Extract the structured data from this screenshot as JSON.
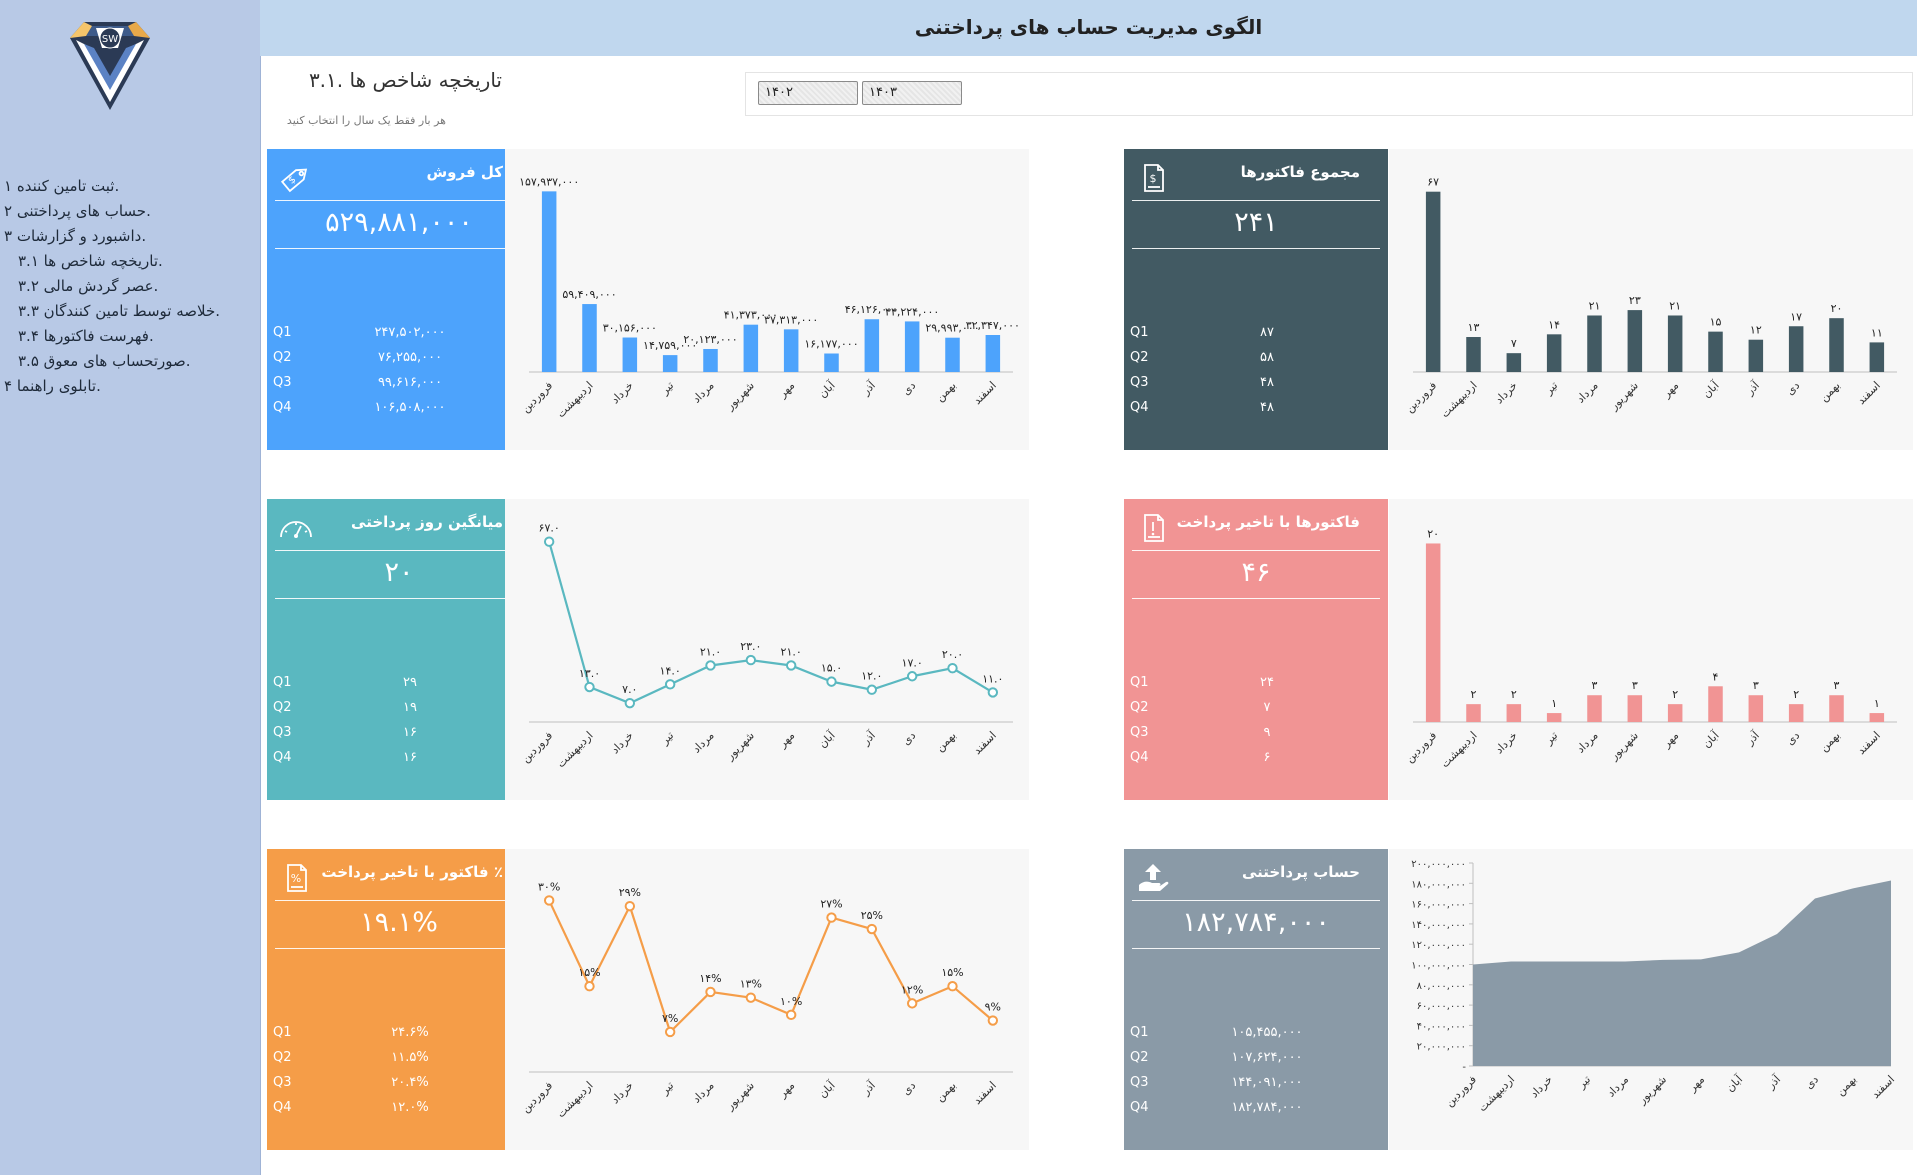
{
  "header": {
    "title": "الگوی مدیریت حساب های پرداختنی"
  },
  "logo": {
    "text": "SW"
  },
  "page": {
    "title": "تاریخچه شاخص ها .۳.۱",
    "hint": "هر بار فقط یک سال را انتخاب کنید"
  },
  "slicer": {
    "items": [
      "۱۴۰۲",
      "۱۴۰۳"
    ]
  },
  "sidebar": {
    "items": [
      {
        "label": "ثبت تامین کننده ۱."
      },
      {
        "label": "حساب های پرداختنی ۲."
      },
      {
        "label": "داشبورد و گزارشات ۳."
      },
      {
        "label": "تاریخچه شاخص ها ۳.۱."
      },
      {
        "label": "عصر گردش مالی ۳.۲."
      },
      {
        "label": "خلاصه توسط تامین کنندگان ۳.۳."
      },
      {
        "label": "فهرست فاکتورها ۳.۴."
      },
      {
        "label": "صورتحساب های معوق ۳.۵."
      },
      {
        "label": "تابلوی راهنما ۴."
      }
    ]
  },
  "kpis": {
    "sales": {
      "title": "کل فروش",
      "value": "۵۲۹,۸۸۱,۰۰۰",
      "color": "#4da3fc",
      "icon": "price-tag-icon",
      "quarters": [
        {
          "label": "Q1",
          "value": "۲۴۷,۵۰۲,۰۰۰"
        },
        {
          "label": "Q2",
          "value": "۷۶,۲۵۵,۰۰۰"
        },
        {
          "label": "Q3",
          "value": "۹۹,۶۱۶,۰۰۰"
        },
        {
          "label": "Q4",
          "value": "۱۰۶,۵۰۸,۰۰۰"
        }
      ]
    },
    "invoices": {
      "title": "مجموع فاکتورها",
      "value": "۲۴۱",
      "color": "#425a63",
      "icon": "invoice-icon",
      "quarters": [
        {
          "label": "Q1",
          "value": "۸۷"
        },
        {
          "label": "Q2",
          "value": "۵۸"
        },
        {
          "label": "Q3",
          "value": "۴۸"
        },
        {
          "label": "Q4",
          "value": "۴۸"
        }
      ]
    },
    "pay_days": {
      "title": "میانگین روز پرداختی",
      "value": "۲۰",
      "color": "#5ab8c0",
      "icon": "gauge-icon",
      "quarters": [
        {
          "label": "Q1",
          "value": "۲۹"
        },
        {
          "label": "Q2",
          "value": "۱۹"
        },
        {
          "label": "Q3",
          "value": "۱۶"
        },
        {
          "label": "Q4",
          "value": "۱۶"
        }
      ]
    },
    "late_invoices": {
      "title": "فاکتورها با تاخیر پرداخت",
      "value": "۴۶",
      "color": "#f19494",
      "icon": "alert-document-icon",
      "quarters": [
        {
          "label": "Q1",
          "value": "۲۴"
        },
        {
          "label": "Q2",
          "value": "۷"
        },
        {
          "label": "Q3",
          "value": "۹"
        },
        {
          "label": "Q4",
          "value": "۶"
        }
      ]
    },
    "late_pct": {
      "title": "فاکتور با تاخیر پرداخت ٪",
      "value": "۱۹.۱%",
      "color": "#f59d48",
      "icon": "percent-document-icon",
      "quarters": [
        {
          "label": "Q1",
          "value": "۲۴.۶%"
        },
        {
          "label": "Q2",
          "value": "۱۱.۵%"
        },
        {
          "label": "Q3",
          "value": "۲۰.۴%"
        },
        {
          "label": "Q4",
          "value": "۱۲.۰%"
        }
      ]
    },
    "payables": {
      "title": "حساب پرداختنی",
      "value": "۱۸۲,۷۸۴,۰۰۰",
      "color": "#8a9aa7",
      "icon": "hand-upload-icon",
      "quarters": [
        {
          "label": "Q1",
          "value": "۱۰۵,۴۵۵,۰۰۰"
        },
        {
          "label": "Q2",
          "value": "۱۰۷,۶۲۴,۰۰۰"
        },
        {
          "label": "Q3",
          "value": "۱۴۴,۰۹۱,۰۰۰"
        },
        {
          "label": "Q4",
          "value": "۱۸۲,۷۸۴,۰۰۰"
        }
      ]
    }
  },
  "chart_data": [
    {
      "id": "sales",
      "type": "bar",
      "color": "#4da3fc",
      "categories": [
        "فروردین",
        "اردیبهشت",
        "خرداد",
        "تیر",
        "مرداد",
        "شهریور",
        "مهر",
        "آبان",
        "آذر",
        "دی",
        "بهمن",
        "اسفند"
      ],
      "values": [
        157937000,
        59409000,
        30156000,
        14759000,
        20123000,
        41373000,
        37313000,
        16177000,
        46126000,
        44224000,
        29993000,
        32347000
      ],
      "labels": [
        "۱۵۷,۹۳۷,۰۰۰",
        "۵۹,۴۰۹,۰۰۰",
        "۳۰,۱۵۶,۰۰۰",
        "۱۴,۷۵۹,۰۰۰",
        "۲۰,۱۲۳,۰۰۰",
        "۴۱,۳۷۳,۰۰۰",
        "۳۷,۳۱۳,۰۰۰",
        "۱۶,۱۷۷,۰۰۰",
        "۴۶,۱۲۶,۰۰۰",
        "۴۴,۲۲۴,۰۰۰",
        "۲۹,۹۹۳,۰۰۰",
        "۳۲,۳۴۷,۰۰۰"
      ],
      "ylim": [
        0,
        160000000
      ]
    },
    {
      "id": "invoices",
      "type": "bar",
      "color": "#425a63",
      "categories": [
        "فروردین",
        "اردیبهشت",
        "خرداد",
        "تیر",
        "مرداد",
        "شهریور",
        "مهر",
        "آبان",
        "آذر",
        "دی",
        "بهمن",
        "اسفند"
      ],
      "values": [
        67,
        13,
        7,
        14,
        21,
        23,
        21,
        15,
        12,
        17,
        20,
        11
      ],
      "labels": [
        "۶۷",
        "۱۳",
        "۷",
        "۱۴",
        "۲۱",
        "۲۳",
        "۲۱",
        "۱۵",
        "۱۲",
        "۱۷",
        "۲۰",
        "۱۱"
      ],
      "ylim": [
        0,
        68
      ]
    },
    {
      "id": "pay_days",
      "type": "line",
      "color": "#5ab8c0",
      "categories": [
        "فروردین",
        "اردیبهشت",
        "خرداد",
        "تیر",
        "مرداد",
        "شهریور",
        "مهر",
        "آبان",
        "آذر",
        "دی",
        "بهمن",
        "اسفند"
      ],
      "values": [
        67,
        13,
        7,
        14,
        21,
        23,
        21,
        15,
        12,
        17,
        20,
        11
      ],
      "labels": [
        "۶۷.۰",
        "۱۳.۰",
        "۷.۰",
        "۱۴.۰",
        "۲۱.۰",
        "۲۳.۰",
        "۲۱.۰",
        "۱۵.۰",
        "۱۲.۰",
        "۱۷.۰",
        "۲۰.۰",
        "۱۱.۰"
      ],
      "ylim": [
        0,
        68
      ]
    },
    {
      "id": "late_invoices",
      "type": "bar",
      "color": "#f19494",
      "categories": [
        "فروردین",
        "اردیبهشت",
        "خرداد",
        "تیر",
        "مرداد",
        "شهریور",
        "مهر",
        "آبان",
        "آذر",
        "دی",
        "بهمن",
        "اسفند"
      ],
      "values": [
        20,
        2,
        2,
        1,
        3,
        3,
        2,
        4,
        3,
        2,
        3,
        1
      ],
      "labels": [
        "۲۰",
        "۲",
        "۲",
        "۱",
        "۳",
        "۳",
        "۲",
        "۴",
        "۳",
        "۲",
        "۳",
        "۱"
      ],
      "ylim": [
        0,
        20.5
      ]
    },
    {
      "id": "late_pct",
      "type": "line",
      "color": "#f59d48",
      "categories": [
        "فروردین",
        "اردیبهشت",
        "خرداد",
        "تیر",
        "مرداد",
        "شهریور",
        "مهر",
        "آبان",
        "آذر",
        "دی",
        "بهمن",
        "اسفند"
      ],
      "values": [
        30,
        15,
        29,
        7,
        14,
        13,
        10,
        27,
        25,
        12,
        15,
        9
      ],
      "labels": [
        "۳۰%",
        "۱۵%",
        "۲۹%",
        "۷%",
        "۱۴%",
        "۱۳%",
        "۱۰%",
        "۲۷%",
        "۲۵%",
        "۱۲%",
        "۱۵%",
        "۹%"
      ],
      "ylim": [
        0,
        32
      ]
    },
    {
      "id": "payables",
      "type": "area",
      "color": "#8a9aa7",
      "categories": [
        "فروردین",
        "اردیبهشت",
        "خرداد",
        "تیر",
        "مرداد",
        "شهریور",
        "مهر",
        "آبان",
        "آذر",
        "دی",
        "بهمن",
        "اسفند"
      ],
      "values": [
        100000000,
        103000000,
        103000000,
        103000000,
        103000000,
        104500000,
        105000000,
        112000000,
        130000000,
        165000000,
        175000000,
        182784000
      ],
      "ylim": [
        0,
        200000000
      ],
      "yticks": [
        0,
        20000000,
        40000000,
        60000000,
        80000000,
        100000000,
        120000000,
        140000000,
        160000000,
        180000000,
        200000000
      ],
      "ytick_labels": [
        "-",
        "۲۰,۰۰۰,۰۰۰",
        "۴۰,۰۰۰,۰۰۰",
        "۶۰,۰۰۰,۰۰۰",
        "۸۰,۰۰۰,۰۰۰",
        "۱۰۰,۰۰۰,۰۰۰",
        "۱۲۰,۰۰۰,۰۰۰",
        "۱۴۰,۰۰۰,۰۰۰",
        "۱۶۰,۰۰۰,۰۰۰",
        "۱۸۰,۰۰۰,۰۰۰",
        "۲۰۰,۰۰۰,۰۰۰"
      ]
    }
  ]
}
